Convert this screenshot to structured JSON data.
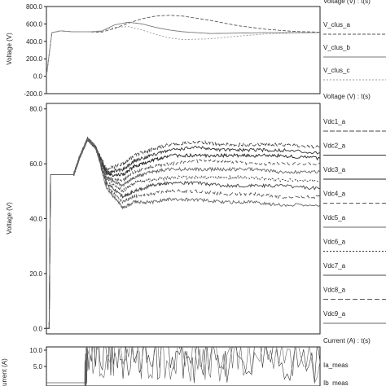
{
  "chart_data": [
    {
      "type": "line",
      "title": "Voltage (V) : t(s)",
      "ylabel": "Voltage (V)",
      "ylim": [
        -200,
        800
      ],
      "yticks": [
        "800.0",
        "600.0",
        "400.0",
        "200.0",
        "0.0",
        "-200.0"
      ],
      "ytick_values": [
        800,
        600,
        400,
        200,
        0,
        -200
      ],
      "x": [
        0,
        0.02,
        0.05,
        0.1,
        0.15,
        0.2,
        0.25,
        0.3,
        0.35,
        0.4,
        0.45,
        0.5,
        0.6,
        0.7,
        0.8,
        0.9,
        1.0
      ],
      "series": [
        {
          "name": "V_clus_a",
          "color": "#555555",
          "dash": "4,2",
          "values": [
            0,
            500,
            520,
            510,
            510,
            505,
            550,
            610,
            660,
            690,
            700,
            690,
            640,
            580,
            540,
            515,
            505
          ]
        },
        {
          "name": "V_clus_b",
          "color": "#777777",
          "dash": "",
          "values": [
            0,
            500,
            520,
            510,
            510,
            515,
            590,
            620,
            600,
            560,
            530,
            510,
            490,
            495,
            500,
            500,
            500
          ]
        },
        {
          "name": "V_clus_c",
          "color": "#999999",
          "dash": "2,2",
          "values": [
            0,
            500,
            520,
            510,
            510,
            520,
            560,
            570,
            530,
            480,
            440,
            420,
            430,
            460,
            485,
            495,
            500
          ]
        }
      ]
    },
    {
      "type": "line",
      "title": "Voltage (V) : t(s)",
      "ylabel": "Voltage (V)",
      "ylim": [
        -2,
        82
      ],
      "yticks": [
        "80.0",
        "60.0",
        "40.0",
        "20.0",
        "0.0"
      ],
      "ytick_values": [
        80,
        60,
        40,
        20,
        0
      ],
      "x": [
        0,
        0.01,
        0.015,
        0.02,
        0.05,
        0.1,
        0.12,
        0.15,
        0.18,
        0.22,
        0.28,
        0.32,
        0.38,
        0.45,
        0.55,
        0.65,
        0.75,
        0.85,
        1.0
      ],
      "series": [
        {
          "name": "Vdc1_a",
          "color": "#444444",
          "dash": "6,2",
          "values": [
            0,
            0,
            56,
            56,
            56,
            56,
            62,
            69,
            66,
            58,
            60,
            63,
            65,
            67,
            68,
            67,
            67,
            67,
            66
          ]
        },
        {
          "name": "Vdc2_a",
          "color": "#333333",
          "dash": "",
          "values": [
            0,
            0,
            56,
            56,
            56,
            56,
            62,
            69,
            66,
            57,
            58,
            61,
            63,
            65,
            66,
            65,
            65,
            65,
            64
          ]
        },
        {
          "name": "Vdc3_a",
          "color": "#222222",
          "dash": "",
          "values": [
            0,
            0,
            56,
            56,
            56,
            56,
            62,
            69,
            66,
            56,
            56,
            59,
            61,
            63,
            63,
            63,
            63,
            63,
            62
          ]
        },
        {
          "name": "Vdc4_a",
          "color": "#555555",
          "dash": "5,3",
          "values": [
            0,
            0,
            56,
            56,
            56,
            56,
            62,
            69,
            66,
            55,
            54,
            57,
            59,
            60,
            61,
            61,
            60,
            60,
            60
          ]
        },
        {
          "name": "Vdc5_a",
          "color": "#666666",
          "dash": "",
          "values": [
            0,
            0,
            56,
            56,
            56,
            56,
            62,
            69,
            66,
            55,
            52,
            55,
            57,
            58,
            58,
            58,
            58,
            57,
            57
          ]
        },
        {
          "name": "Vdc6_a",
          "color": "#333333",
          "dash": "2,2",
          "values": [
            0,
            0,
            56,
            56,
            56,
            56,
            62,
            69,
            66,
            54,
            50,
            53,
            54,
            55,
            55,
            55,
            55,
            54,
            54
          ]
        },
        {
          "name": "Vdc7_a",
          "color": "#444444",
          "dash": "",
          "values": [
            0,
            0,
            56,
            56,
            56,
            56,
            62,
            69,
            66,
            53,
            48,
            50,
            52,
            53,
            53,
            52,
            52,
            52,
            51
          ]
        },
        {
          "name": "Vdc8_a",
          "color": "#555555",
          "dash": "6,3",
          "values": [
            0,
            0,
            56,
            56,
            56,
            56,
            62,
            69,
            66,
            52,
            46,
            48,
            49,
            50,
            50,
            49,
            49,
            48,
            48
          ]
        },
        {
          "name": "Vdc9_a",
          "color": "#666666",
          "dash": "",
          "values": [
            0,
            0,
            56,
            56,
            56,
            56,
            62,
            69,
            66,
            51,
            44,
            46,
            46,
            47,
            47,
            46,
            46,
            45,
            45
          ]
        }
      ]
    },
    {
      "type": "line",
      "title": "Current (A) : t(s)",
      "ylabel": "Current (A)",
      "ylim": [
        -1,
        11
      ],
      "yticks": [
        "10.0",
        "5.0"
      ],
      "ytick_values": [
        10,
        5
      ],
      "x": [
        0,
        0.14,
        0.15,
        0.3,
        0.5,
        0.7,
        1.0
      ],
      "series": [
        {
          "name": "Ia_meas",
          "color": "#333333",
          "dash": "",
          "values": [
            0,
            0,
            8.5,
            7,
            6.5,
            6.5,
            6.5
          ]
        },
        {
          "name": "Ib_meas",
          "color": "#666666",
          "dash": "",
          "values": [
            0,
            0,
            8.5,
            7,
            6.5,
            6.5,
            6.5
          ]
        }
      ]
    }
  ]
}
